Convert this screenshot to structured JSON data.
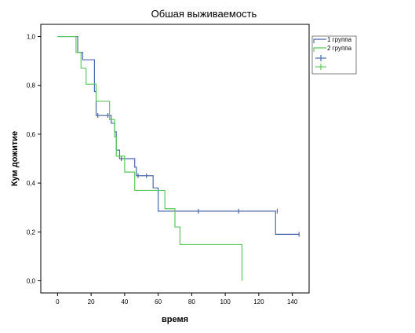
{
  "chart_data": {
    "type": "line",
    "title": "Обшая выживаемость",
    "xlabel": "время",
    "ylabel": "Кум дожитие",
    "xlim": [
      -10,
      150
    ],
    "ylim": [
      -0.05,
      1.05
    ],
    "xticks": [
      "0",
      "20",
      "40",
      "60",
      "80",
      "100",
      "120",
      "140"
    ],
    "yticks": [
      "0,0",
      "0,2",
      "0,4",
      "0,6",
      "0,8",
      "1,0"
    ],
    "grid": false,
    "legend_position": "right",
    "legend": [
      "1 группа",
      "2 группа"
    ],
    "series": [
      {
        "name": "1 группа",
        "color": "#4a6aa8",
        "step": [
          [
            0,
            1.0
          ],
          [
            12,
            1.0
          ],
          [
            12,
            0.935
          ],
          [
            15,
            0.935
          ],
          [
            15,
            0.905
          ],
          [
            22,
            0.905
          ],
          [
            22,
            0.775
          ],
          [
            23,
            0.775
          ],
          [
            23,
            0.677
          ],
          [
            32,
            0.677
          ],
          [
            32,
            0.645
          ],
          [
            34,
            0.645
          ],
          [
            34,
            0.61
          ],
          [
            35,
            0.61
          ],
          [
            35,
            0.535
          ],
          [
            37,
            0.535
          ],
          [
            37,
            0.5
          ],
          [
            46,
            0.5
          ],
          [
            46,
            0.465
          ],
          [
            47,
            0.465
          ],
          [
            47,
            0.43
          ],
          [
            57,
            0.43
          ],
          [
            57,
            0.38
          ],
          [
            60,
            0.38
          ],
          [
            60,
            0.285
          ],
          [
            130,
            0.285
          ],
          [
            130,
            0.19
          ],
          [
            144,
            0.19
          ]
        ],
        "censored": [
          [
            24,
            0.677
          ],
          [
            30,
            0.677
          ],
          [
            38,
            0.5
          ],
          [
            48,
            0.43
          ],
          [
            53,
            0.43
          ],
          [
            84,
            0.285
          ],
          [
            108,
            0.285
          ],
          [
            131,
            0.285
          ],
          [
            144,
            0.19
          ]
        ]
      },
      {
        "name": "2 группа",
        "color": "#5cc85c",
        "step": [
          [
            0,
            1.0
          ],
          [
            11,
            1.0
          ],
          [
            11,
            0.935
          ],
          [
            14,
            0.935
          ],
          [
            14,
            0.87
          ],
          [
            17,
            0.87
          ],
          [
            17,
            0.805
          ],
          [
            23,
            0.805
          ],
          [
            23,
            0.735
          ],
          [
            31,
            0.735
          ],
          [
            31,
            0.66
          ],
          [
            34,
            0.66
          ],
          [
            34,
            0.59
          ],
          [
            35,
            0.59
          ],
          [
            35,
            0.51
          ],
          [
            40,
            0.51
          ],
          [
            40,
            0.445
          ],
          [
            46,
            0.445
          ],
          [
            46,
            0.37
          ],
          [
            64,
            0.37
          ],
          [
            64,
            0.295
          ],
          [
            70,
            0.295
          ],
          [
            70,
            0.22
          ],
          [
            73,
            0.22
          ],
          [
            73,
            0.148
          ],
          [
            110,
            0.148
          ],
          [
            110,
            0.0
          ]
        ],
        "censored": []
      }
    ]
  }
}
